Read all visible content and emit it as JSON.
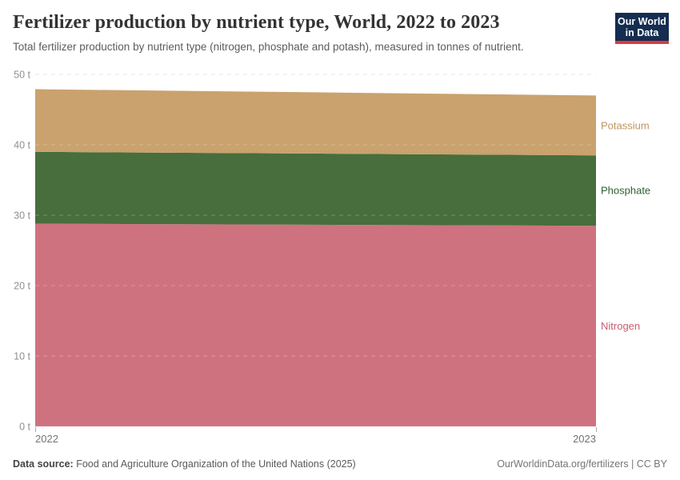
{
  "header": {
    "title": "Fertilizer production by nutrient type, World, 2022 to 2023",
    "subtitle": "Total fertilizer production by nutrient type (nitrogen, phosphate and potash), measured in tonnes of nutrient.",
    "logo": {
      "line1": "Our World",
      "line2": "in Data",
      "bg_color": "#142d50",
      "bar_color": "#d93a42"
    }
  },
  "chart_data": {
    "type": "area",
    "stacked": true,
    "title": "Fertilizer production by nutrient type, World, 2022 to 2023",
    "x": [
      2022,
      2023
    ],
    "xtick_labels": [
      "2022",
      "2023"
    ],
    "series": [
      {
        "name": "Nitrogen",
        "values": [
          28.8,
          28.5
        ],
        "color": "#ce7280",
        "label_color": "#c75d70"
      },
      {
        "name": "Phosphate",
        "values": [
          10.2,
          10.0
        ],
        "color": "#476e3c",
        "label_color": "#2e5e2f"
      },
      {
        "name": "Potassium",
        "values": [
          8.9,
          8.5
        ],
        "color": "#c9a26e",
        "label_color": "#bf9660"
      }
    ],
    "xlabel": "",
    "ylabel": "",
    "ylim": [
      0,
      50
    ],
    "ytick_values": [
      0,
      10,
      20,
      30,
      40,
      50
    ],
    "ytick_labels": [
      "0 t",
      "10 t",
      "20 t",
      "30 t",
      "40 t",
      "50 t"
    ],
    "grid": true,
    "grid_color": "#dddddd",
    "axis_label_color": "#8f8f8f",
    "xaxis_label_color": "#737373",
    "legend_position": "right-edge-labels"
  },
  "footer": {
    "source_label": "Data source:",
    "source_rest": " Food and Agriculture Organization of the United Nations (2025)",
    "credit": "OurWorldinData.org/fertilizers | CC BY"
  }
}
